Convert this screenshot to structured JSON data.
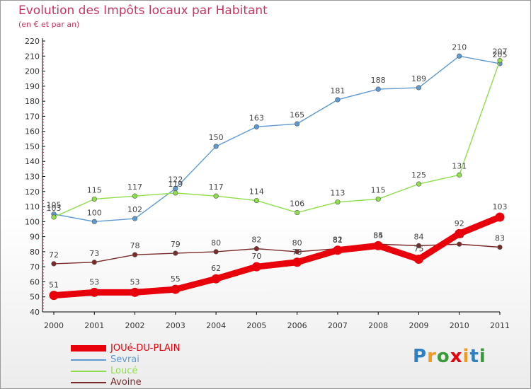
{
  "title": "Evolution des Impôts locaux par Habitant",
  "subtitle": "(en € et par an)",
  "logo": "Proxiti",
  "chart_data": {
    "type": "line",
    "x": [
      "2000",
      "2001",
      "2002",
      "2003",
      "2004",
      "2005",
      "2006",
      "2007",
      "2008",
      "2009",
      "2010",
      "2011"
    ],
    "ylim": [
      40,
      220
    ],
    "yticks": [
      40,
      50,
      60,
      70,
      80,
      90,
      100,
      110,
      120,
      130,
      140,
      150,
      160,
      170,
      180,
      190,
      200,
      210,
      220
    ],
    "grid": false,
    "legend_position": "bottom-left",
    "series": [
      {
        "name": "JOUé-DU-PLAIN",
        "color": "#e8000b",
        "values": [
          51,
          53,
          53,
          55,
          62,
          70,
          73,
          81,
          84,
          75,
          92,
          103
        ],
        "labels": [
          "51",
          "53",
          "53",
          "55",
          "62",
          "70",
          "73",
          "81",
          "84",
          "75",
          "92",
          "103"
        ]
      },
      {
        "name": "Sevrai",
        "color": "#5e9ad1",
        "values": [
          105,
          100,
          102,
          122,
          150,
          163,
          165,
          181,
          188,
          189,
          210,
          205
        ],
        "labels": [
          "105",
          "100",
          "102",
          "122",
          "150",
          "163",
          "165",
          "181",
          "188",
          "189",
          "210",
          "205"
        ]
      },
      {
        "name": "Loucé",
        "color": "#8fde4b",
        "values": [
          103,
          115,
          117,
          119,
          117,
          114,
          106,
          113,
          115,
          125,
          131,
          207
        ],
        "labels": [
          "103",
          "115",
          "117",
          "119",
          "117",
          "114",
          "106",
          "113",
          "115",
          "125",
          "131",
          "207"
        ]
      },
      {
        "name": "Avoine",
        "color": "#7b2a2a",
        "values": [
          72,
          73,
          78,
          79,
          80,
          82,
          80,
          82,
          85,
          84,
          85,
          83
        ],
        "labels": [
          "72",
          "73",
          "78",
          "79",
          "80",
          "82",
          "80",
          "82",
          "85",
          "84",
          "85",
          "83"
        ]
      }
    ]
  }
}
